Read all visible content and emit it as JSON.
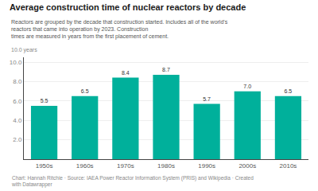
{
  "chart_data": {
    "type": "bar",
    "title": "Average construction time of nuclear reactors by decade",
    "subtitle": "Reactors are grouped by the decade that construction started. Includes all of the world's reactors that came into operation by 2023. Construction\ntimes are measured in years from the first placement of cement.",
    "ylabel": "10.0 years",
    "footer": "Chart: Hannah Ritchie · Source: IAEA Power Reactor Information System (PRIS) and Wikipedia · Created with Datawrapper",
    "categories": [
      "1950s",
      "1960s",
      "1970s",
      "1980s",
      "1990s",
      "2000s",
      "2010s"
    ],
    "values": [
      5.5,
      6.5,
      8.4,
      8.7,
      5.7,
      7.0,
      6.5
    ],
    "value_labels": [
      "5.5",
      "6.5",
      "8.4",
      "8.7",
      "5.7",
      "7.0",
      "6.5"
    ],
    "data_labels": true,
    "color": "#00b09b",
    "ylim": [
      0,
      10.5
    ],
    "yticks": [
      {
        "value": 2,
        "label": "2.0"
      },
      {
        "value": 4,
        "label": "4.0"
      },
      {
        "value": 6,
        "label": "6.0"
      },
      {
        "value": 8,
        "label": "8.0"
      },
      {
        "value": 10,
        "label": "10.0"
      }
    ],
    "grid": true
  }
}
